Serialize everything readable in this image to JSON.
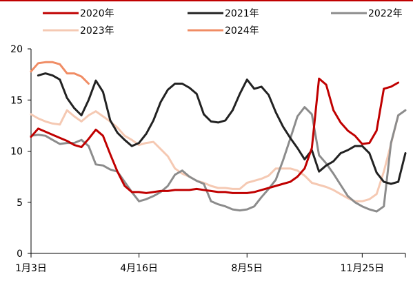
{
  "chart_data": {
    "type": "line",
    "title": "",
    "xlabel": "",
    "ylabel": "",
    "ylim": [
      0,
      20
    ],
    "yticks": [
      0,
      5,
      10,
      15,
      20
    ],
    "x_range": [
      1,
      52
    ],
    "xtick_labels": [
      {
        "label": "1月3日",
        "x": 1
      },
      {
        "label": "4月16日",
        "x": 16
      },
      {
        "label": "8月5日",
        "x": 31
      },
      {
        "label": "11月25日",
        "x": 47
      }
    ],
    "grid": false,
    "legend_position": "top",
    "series": [
      {
        "name": "2020年",
        "color": "#C00000",
        "points": [
          [
            1,
            11.4
          ],
          [
            2,
            12.2
          ],
          [
            3,
            11.9
          ],
          [
            4,
            11.6
          ],
          [
            5,
            11.3
          ],
          [
            6,
            11.0
          ],
          [
            7,
            10.6
          ],
          [
            8,
            10.4
          ],
          [
            9,
            11.2
          ],
          [
            10,
            12.1
          ],
          [
            11,
            11.5
          ],
          [
            12,
            9.7
          ],
          [
            13,
            8.0
          ],
          [
            14,
            6.6
          ],
          [
            15,
            6.0
          ],
          [
            16,
            6.0
          ],
          [
            17,
            5.9
          ],
          [
            18,
            6.0
          ],
          [
            19,
            6.1
          ],
          [
            20,
            6.1
          ],
          [
            21,
            6.2
          ],
          [
            22,
            6.2
          ],
          [
            23,
            6.2
          ],
          [
            24,
            6.3
          ],
          [
            25,
            6.2
          ],
          [
            26,
            6.1
          ],
          [
            27,
            6.0
          ],
          [
            28,
            6.0
          ],
          [
            29,
            5.9
          ],
          [
            30,
            5.9
          ],
          [
            31,
            5.9
          ],
          [
            32,
            6.0
          ],
          [
            33,
            6.2
          ],
          [
            34,
            6.4
          ],
          [
            35,
            6.6
          ],
          [
            36,
            6.8
          ],
          [
            37,
            7.0
          ],
          [
            38,
            7.5
          ],
          [
            39,
            8.3
          ],
          [
            40,
            10.3
          ],
          [
            41,
            17.1
          ],
          [
            42,
            16.5
          ],
          [
            43,
            14.0
          ],
          [
            44,
            12.8
          ],
          [
            45,
            12.0
          ],
          [
            46,
            11.5
          ],
          [
            47,
            10.7
          ],
          [
            48,
            10.8
          ],
          [
            49,
            12.0
          ],
          [
            50,
            16.1
          ],
          [
            51,
            16.3
          ],
          [
            52,
            16.7
          ]
        ]
      },
      {
        "name": "2021年",
        "color": "#222222",
        "points": [
          [
            2,
            17.4
          ],
          [
            3,
            17.6
          ],
          [
            4,
            17.4
          ],
          [
            5,
            17.0
          ],
          [
            6,
            15.2
          ],
          [
            7,
            14.2
          ],
          [
            8,
            13.5
          ],
          [
            9,
            15.0
          ],
          [
            10,
            16.9
          ],
          [
            11,
            15.8
          ],
          [
            12,
            13.0
          ],
          [
            13,
            11.8
          ],
          [
            14,
            11.1
          ],
          [
            15,
            10.5
          ],
          [
            16,
            10.8
          ],
          [
            17,
            11.7
          ],
          [
            18,
            13.0
          ],
          [
            19,
            14.8
          ],
          [
            20,
            16.0
          ],
          [
            21,
            16.6
          ],
          [
            22,
            16.6
          ],
          [
            23,
            16.2
          ],
          [
            24,
            15.6
          ],
          [
            25,
            13.6
          ],
          [
            26,
            12.9
          ],
          [
            27,
            12.8
          ],
          [
            28,
            13.0
          ],
          [
            29,
            14.0
          ],
          [
            30,
            15.6
          ],
          [
            31,
            17.0
          ],
          [
            32,
            16.1
          ],
          [
            33,
            16.3
          ],
          [
            34,
            15.5
          ],
          [
            35,
            13.8
          ],
          [
            36,
            12.4
          ],
          [
            37,
            11.3
          ],
          [
            38,
            10.3
          ],
          [
            39,
            9.2
          ],
          [
            40,
            10.1
          ],
          [
            41,
            8.0
          ],
          [
            42,
            8.6
          ],
          [
            43,
            9.0
          ],
          [
            44,
            9.8
          ],
          [
            45,
            10.1
          ],
          [
            46,
            10.5
          ],
          [
            47,
            10.5
          ],
          [
            48,
            9.8
          ],
          [
            49,
            7.9
          ],
          [
            50,
            7.0
          ],
          [
            51,
            6.8
          ],
          [
            52,
            7.0
          ],
          [
            53,
            9.8
          ]
        ]
      },
      {
        "name": "2022年",
        "color": "#8C8C8C",
        "points": [
          [
            1,
            11.5
          ],
          [
            2,
            11.6
          ],
          [
            3,
            11.5
          ],
          [
            4,
            11.1
          ],
          [
            5,
            10.7
          ],
          [
            6,
            10.8
          ],
          [
            7,
            10.8
          ],
          [
            8,
            11.1
          ],
          [
            9,
            10.5
          ],
          [
            10,
            8.7
          ],
          [
            11,
            8.6
          ],
          [
            12,
            8.2
          ],
          [
            13,
            8.0
          ],
          [
            14,
            7.0
          ],
          [
            15,
            6.0
          ],
          [
            16,
            5.1
          ],
          [
            17,
            5.3
          ],
          [
            18,
            5.6
          ],
          [
            19,
            6.0
          ],
          [
            20,
            6.6
          ],
          [
            21,
            7.7
          ],
          [
            22,
            8.1
          ],
          [
            23,
            7.5
          ],
          [
            24,
            7.1
          ],
          [
            25,
            6.8
          ],
          [
            26,
            5.1
          ],
          [
            27,
            4.8
          ],
          [
            28,
            4.6
          ],
          [
            29,
            4.3
          ],
          [
            30,
            4.2
          ],
          [
            31,
            4.3
          ],
          [
            32,
            4.6
          ],
          [
            33,
            5.5
          ],
          [
            34,
            6.3
          ],
          [
            35,
            7.2
          ],
          [
            36,
            9.1
          ],
          [
            37,
            11.2
          ],
          [
            38,
            13.4
          ],
          [
            39,
            14.3
          ],
          [
            40,
            13.6
          ],
          [
            41,
            9.6
          ],
          [
            42,
            8.8
          ],
          [
            43,
            7.8
          ],
          [
            44,
            6.7
          ],
          [
            45,
            5.6
          ],
          [
            46,
            5.0
          ],
          [
            47,
            4.6
          ],
          [
            48,
            4.3
          ],
          [
            49,
            4.1
          ],
          [
            50,
            4.6
          ],
          [
            51,
            10.8
          ],
          [
            52,
            13.5
          ],
          [
            53,
            14.0
          ]
        ]
      },
      {
        "name": "2023年",
        "color": "#F5C9B3",
        "points": [
          [
            1,
            13.6
          ],
          [
            2,
            13.2
          ],
          [
            3,
            12.9
          ],
          [
            4,
            12.7
          ],
          [
            5,
            12.6
          ],
          [
            6,
            14.0
          ],
          [
            7,
            13.4
          ],
          [
            8,
            12.9
          ],
          [
            9,
            13.5
          ],
          [
            10,
            13.9
          ],
          [
            11,
            13.4
          ],
          [
            12,
            12.9
          ],
          [
            13,
            12.3
          ],
          [
            14,
            11.5
          ],
          [
            15,
            11.1
          ],
          [
            16,
            10.6
          ],
          [
            17,
            10.8
          ],
          [
            18,
            10.9
          ],
          [
            19,
            10.2
          ],
          [
            20,
            9.5
          ],
          [
            21,
            8.3
          ],
          [
            22,
            7.8
          ],
          [
            23,
            7.5
          ],
          [
            24,
            7.1
          ],
          [
            25,
            6.9
          ],
          [
            26,
            6.6
          ],
          [
            27,
            6.4
          ],
          [
            28,
            6.4
          ],
          [
            29,
            6.3
          ],
          [
            30,
            6.3
          ],
          [
            31,
            6.9
          ],
          [
            32,
            7.1
          ],
          [
            33,
            7.3
          ],
          [
            34,
            7.6
          ],
          [
            35,
            8.3
          ],
          [
            36,
            8.3
          ],
          [
            37,
            8.3
          ],
          [
            38,
            8.1
          ],
          [
            39,
            7.6
          ],
          [
            40,
            6.9
          ],
          [
            41,
            6.7
          ],
          [
            42,
            6.5
          ],
          [
            43,
            6.2
          ],
          [
            44,
            5.8
          ],
          [
            45,
            5.4
          ],
          [
            46,
            5.1
          ],
          [
            47,
            5.1
          ],
          [
            48,
            5.3
          ],
          [
            49,
            5.8
          ],
          [
            50,
            8.0
          ],
          [
            51,
            10.7
          ],
          [
            52,
            13.5
          ]
        ]
      },
      {
        "name": "2024年",
        "color": "#F08C64",
        "points": [
          [
            1,
            17.8
          ],
          [
            2,
            18.6
          ],
          [
            3,
            18.7
          ],
          [
            4,
            18.7
          ],
          [
            5,
            18.5
          ],
          [
            6,
            17.6
          ],
          [
            7,
            17.6
          ],
          [
            8,
            17.3
          ],
          [
            9,
            16.6
          ]
        ]
      }
    ]
  }
}
